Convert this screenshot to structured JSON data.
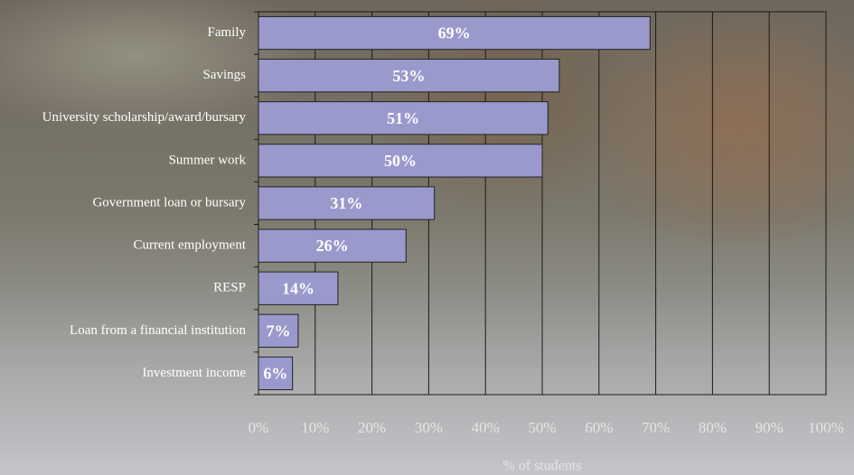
{
  "chart_data": {
    "type": "bar",
    "x_label": "% of students",
    "categories": [
      "Family",
      "Savings",
      "University scholarship/award/bursary",
      "Summer work",
      "Government loan or bursary",
      "Current employment",
      "RESP",
      "Loan from a financial institution",
      "Investment income"
    ],
    "values": [
      69,
      53,
      51,
      50,
      31,
      26,
      14,
      7,
      6
    ],
    "value_labels": [
      "69%",
      "53%",
      "51%",
      "50%",
      "31%",
      "26%",
      "14%",
      "7%",
      "6%"
    ],
    "color": "#9999cc",
    "xlim": [
      0,
      100
    ],
    "xticks": [
      {
        "value": 0,
        "label": "0%"
      },
      {
        "value": 10,
        "label": "10%"
      },
      {
        "value": 20,
        "label": "20%"
      },
      {
        "value": 30,
        "label": "30%"
      },
      {
        "value": 40,
        "label": "40%"
      },
      {
        "value": 50,
        "label": "50%"
      },
      {
        "value": 60,
        "label": "60%"
      },
      {
        "value": 70,
        "label": "70%"
      },
      {
        "value": 80,
        "label": "80%"
      },
      {
        "value": 90,
        "label": "90%"
      },
      {
        "value": 100,
        "label": "100%"
      }
    ],
    "grid": true
  }
}
